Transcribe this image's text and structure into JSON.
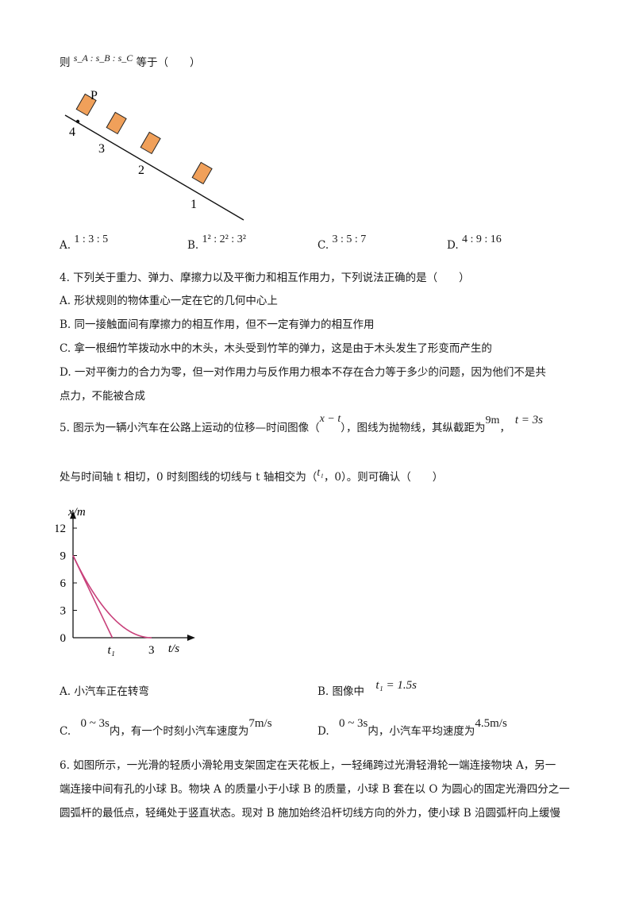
{
  "intro": {
    "prefix": "则",
    "expr": "s_A : s_B : s_C",
    "suffix": "等于（　　）"
  },
  "figure1": {
    "point_label": "P",
    "positions": [
      "4",
      "3",
      "2",
      "1"
    ],
    "block_color": "#f0a05a"
  },
  "q3_options": [
    {
      "letter": "A.",
      "text": "1 : 3 : 5"
    },
    {
      "letter": "B.",
      "text": "1² : 2² : 3²"
    },
    {
      "letter": "C.",
      "text": "3 : 5 : 7"
    },
    {
      "letter": "D.",
      "text": "4 : 9 : 16"
    }
  ],
  "q4": {
    "stem": "4. 下列关于重力、弹力、摩擦力以及平衡力和相互作用力，下列说法正确的是（　　）",
    "options": {
      "A": "A. 形状规则的物体重心一定在它的几何中心上",
      "B": "B. 同一接触面间有摩擦力的相互作用，但不一定有弹力的相互作用",
      "C": "C. 拿一根细竹竿拨动水中的木头，木头受到竹竿的弹力，这是由于木头发生了形变而产生的",
      "D_line1": "D. 一对平衡力的合力为零，但一对作用力与反作用力根本不存在合力等于多少的问题，因为他们不是共",
      "D_line2": "点力，不能被合成"
    }
  },
  "q5": {
    "stem_part1": "5. 图示为一辆小汽车在公路上运动的位移—时间图像（",
    "graph_label": "x − t",
    "stem_part2": "），图线为抛物线，其纵截距为",
    "intercept": "9m",
    "sep": "，",
    "tangent_time": "t = 3s",
    "line2_part1": "处与时间轴 t 相切，0 时刻图线的切线与 t 轴相交为（",
    "t1": "t₁",
    "line2_part2": "，0）。则可确认（　　）",
    "options": {
      "A": "A. 小汽车正在转弯",
      "B_prefix": "B. 图像中",
      "B_math": "t₁ = 1.5s",
      "C_prefix": "C.",
      "C_math1": "0 ~ 3s",
      "C_mid": "内，有一个时刻小汽车速度为",
      "C_math2": "7m/s",
      "D_prefix": "D.",
      "D_math1": "0 ~ 3s",
      "D_mid": "内，小汽车平均速度为",
      "D_math2": "4.5m/s"
    }
  },
  "chart_data": {
    "type": "line",
    "xlabel": "t/s",
    "ylabel": "x/m",
    "ylim": [
      0,
      12
    ],
    "xlim": [
      0,
      4.3
    ],
    "y_ticks": [
      "0",
      "3",
      "6",
      "9",
      "12"
    ],
    "x_tick_labels": [
      "t₁",
      "3"
    ],
    "series": [
      {
        "kind": "parabola",
        "x": [
          0,
          0.5,
          1,
          1.5,
          2,
          2.5,
          3
        ],
        "y": [
          9,
          6.25,
          4,
          2.25,
          1,
          0.25,
          0
        ]
      },
      {
        "kind": "tangent",
        "x": [
          0,
          1.5
        ],
        "y": [
          9,
          0
        ]
      }
    ],
    "line_color": "#c8407a"
  },
  "q6": {
    "line1": "6. 如图所示，一光滑的轻质小滑轮用支架固定在天花板上，一轻绳跨过光滑轻滑轮一端连接物块 A，另一",
    "line2": "端连接中间有孔的小球 B。物块 A 的质量小于小球 B 的质量，小球 B 套在以 O 为圆心的固定光滑四分之一",
    "line3": "圆弧杆的最低点，轻绳处于竖直状态。现对 B 施加始终沿杆切线方向的外力，使小球 B 沿圆弧杆向上缓慢"
  }
}
